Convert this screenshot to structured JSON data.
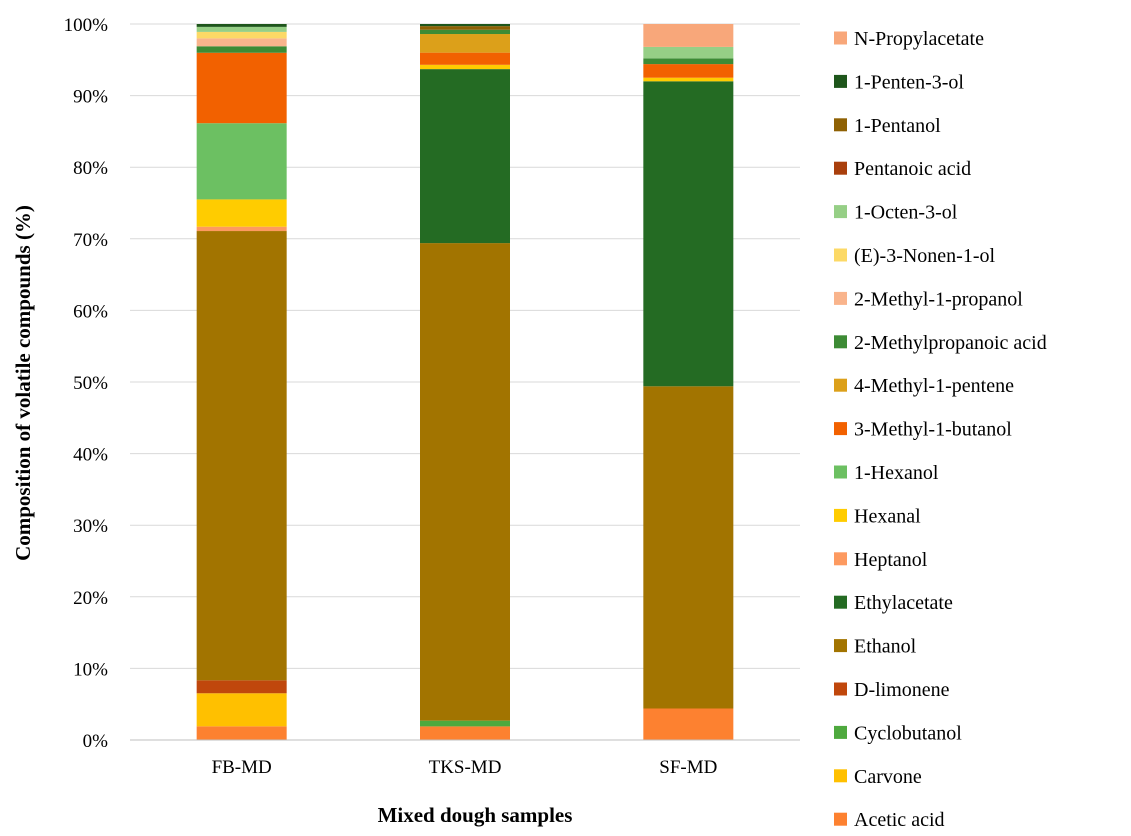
{
  "chart_data": {
    "type": "bar",
    "stacked": true,
    "percent": true,
    "title": "",
    "xlabel": "Mixed dough samples",
    "ylabel": "Composition of volatile compounds (%)",
    "ylim": [
      0,
      100
    ],
    "yticks": [
      "0%",
      "10%",
      "20%",
      "30%",
      "40%",
      "50%",
      "60%",
      "70%",
      "80%",
      "90%",
      "100%"
    ],
    "grid": true,
    "legend_position": "right",
    "categories": [
      "FB-MD",
      "TKS-MD",
      "SF-MD"
    ],
    "series": [
      {
        "name": "Acetic acid",
        "color": "#fd8130",
        "values": [
          1.9,
          1.9,
          4.4
        ]
      },
      {
        "name": "Carvone",
        "color": "#ffc000",
        "values": [
          4.6,
          0,
          0
        ]
      },
      {
        "name": "Cyclobutanol",
        "color": "#4ea93e",
        "values": [
          0,
          0.8,
          0
        ]
      },
      {
        "name": "D-limonene",
        "color": "#c0470c",
        "values": [
          1.8,
          0,
          0
        ]
      },
      {
        "name": "Ethanol",
        "color": "#a27400",
        "values": [
          62.5,
          66.7,
          45.0
        ]
      },
      {
        "name": "Ethylacetate",
        "color": "#246b23",
        "values": [
          0,
          24.3,
          42.6
        ]
      },
      {
        "name": "Heptanol",
        "color": "#fd9a60",
        "values": [
          0.6,
          0,
          0
        ]
      },
      {
        "name": "Hexanal",
        "color": "#ffcc00",
        "values": [
          3.8,
          0.6,
          0.5
        ]
      },
      {
        "name": "1-Hexanol",
        "color": "#6cc062",
        "values": [
          10.6,
          0,
          0
        ]
      },
      {
        "name": "3-Methyl-1-butanol",
        "color": "#f26100",
        "values": [
          9.8,
          1.7,
          1.9
        ]
      },
      {
        "name": "4-Methyl-1-pentene",
        "color": "#dca01a",
        "values": [
          0,
          2.6,
          0
        ]
      },
      {
        "name": "2-Methylpropanoic acid",
        "color": "#3d8b35",
        "values": [
          0.9,
          0.6,
          0.8
        ]
      },
      {
        "name": "2-Methyl-1-propanol",
        "color": "#f9b48c",
        "values": [
          1.1,
          0,
          0
        ]
      },
      {
        "name": "(E)-3-Nonen-1-ol",
        "color": "#fcd966",
        "values": [
          0.9,
          0,
          0
        ]
      },
      {
        "name": "1-Octen-3-ol",
        "color": "#96cf86",
        "values": [
          0.7,
          0,
          1.6
        ]
      },
      {
        "name": "Pentanoic acid",
        "color": "#a93f0c",
        "values": [
          0,
          0,
          0
        ]
      },
      {
        "name": "1-Pentanol",
        "color": "#8f6104",
        "values": [
          0,
          0.5,
          0
        ]
      },
      {
        "name": "1-Penten-3-ol",
        "color": "#1e561b",
        "values": [
          0.4,
          0.3,
          0
        ]
      },
      {
        "name": "N-Propylacetate",
        "color": "#f8a77a",
        "values": [
          0,
          0,
          3.2
        ]
      }
    ]
  }
}
